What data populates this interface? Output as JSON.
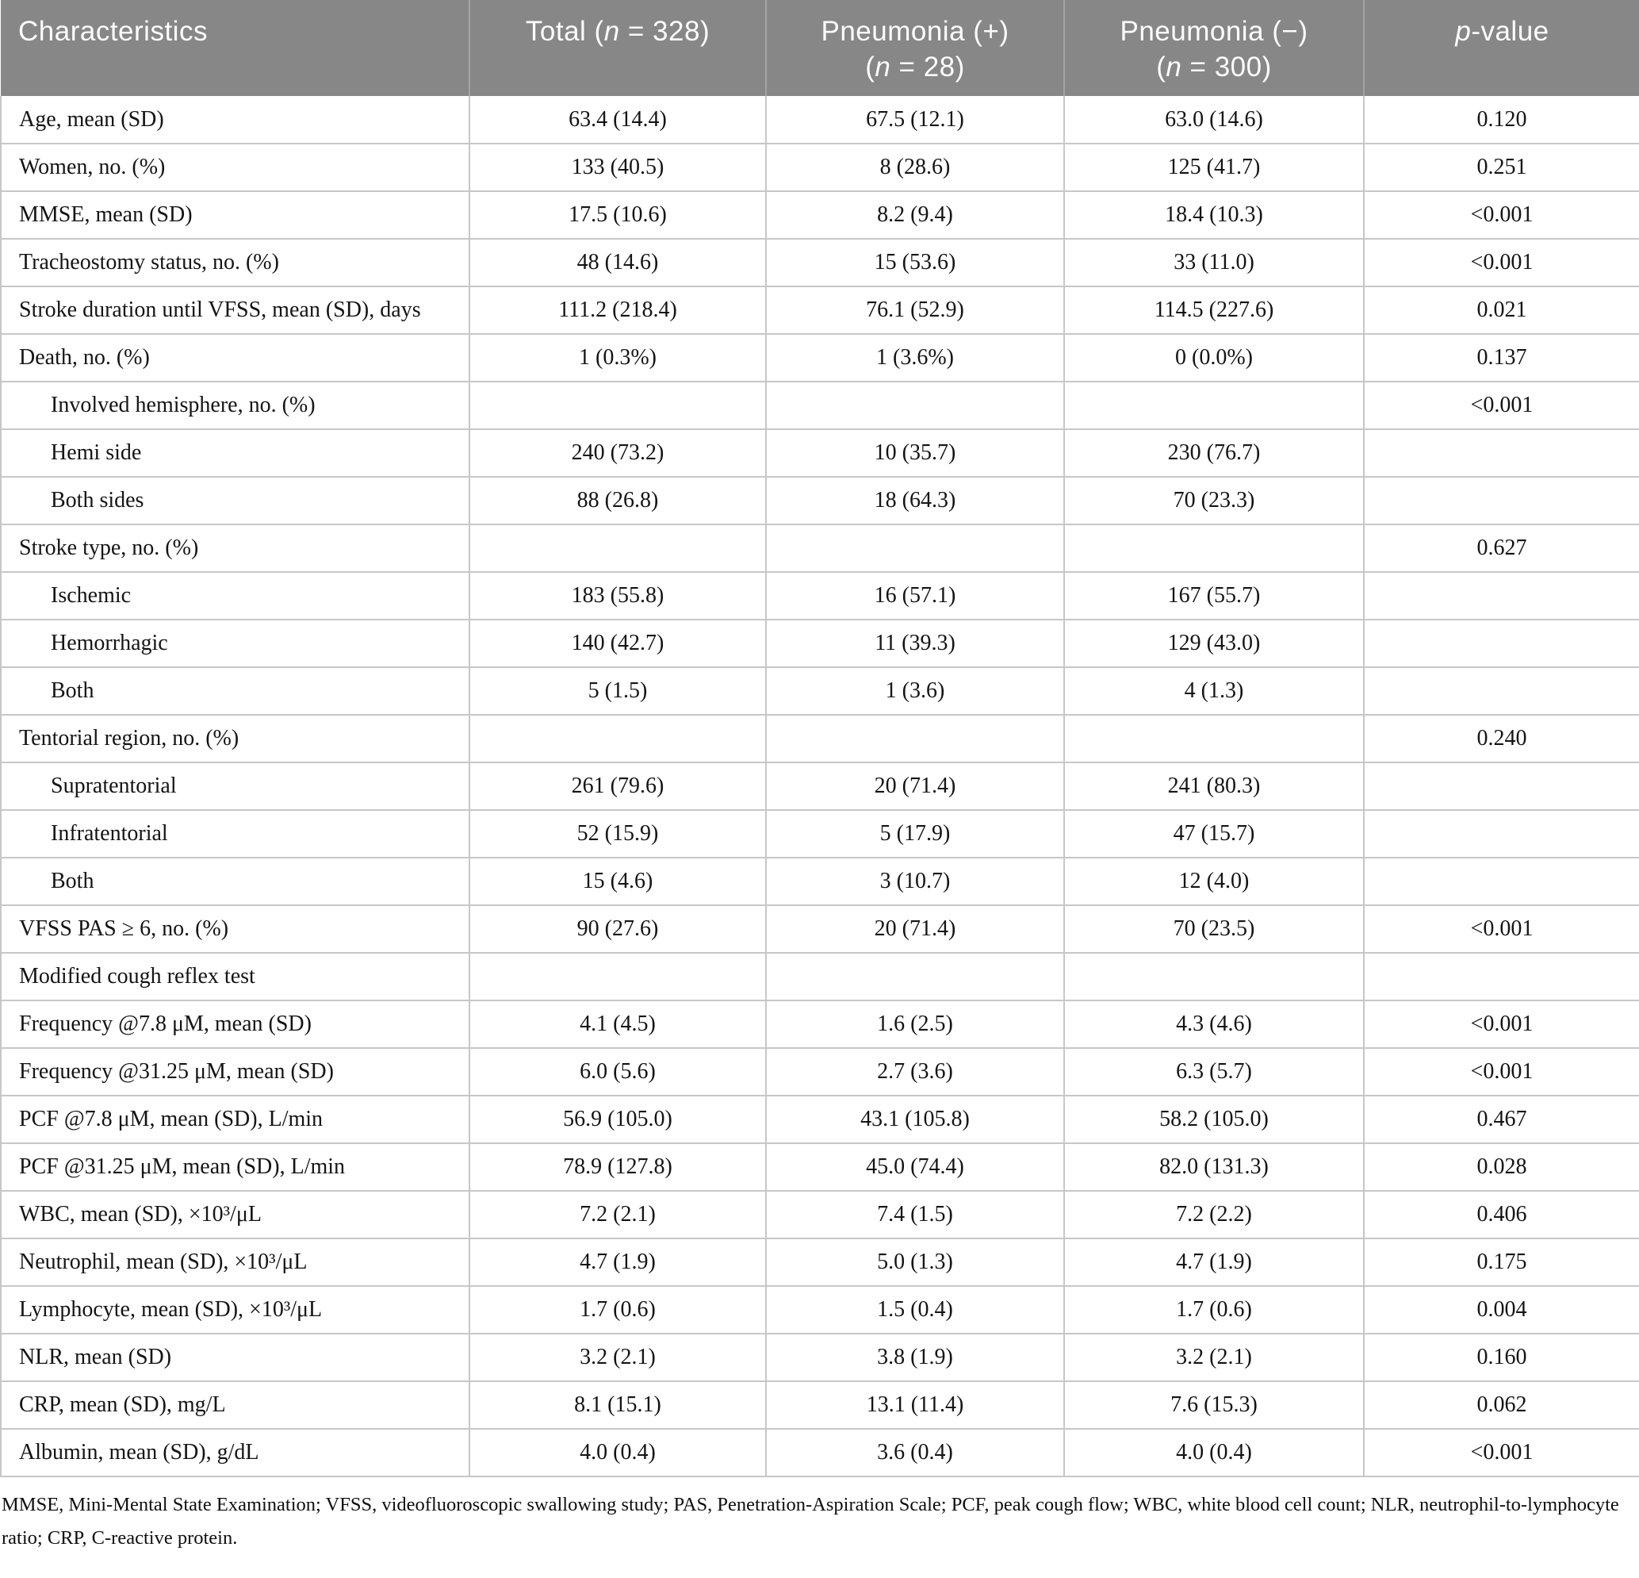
{
  "colors": {
    "header_bg": "#878787",
    "header_text": "#fcfcfc",
    "header_divider": "#a3a3a3",
    "border": "#c7c7c7",
    "text": "#141414"
  },
  "table": {
    "header": [
      {
        "lines": [
          "Characteristics"
        ]
      },
      {
        "lines": [
          "Total (n = 328)"
        ]
      },
      {
        "lines": [
          "Pneumonia (+)",
          "(n = 28)"
        ]
      },
      {
        "lines": [
          "Pneumonia (−)",
          "(n = 300)"
        ]
      },
      {
        "lines": [
          "p-value"
        ]
      }
    ],
    "rows": [
      {
        "label": "Age, mean (SD)",
        "indent": false,
        "values": [
          "63.4 (14.4)",
          "67.5 (12.1)",
          "63.0 (14.6)"
        ],
        "p": "0.120"
      },
      {
        "label": "Women, no. (%)",
        "indent": false,
        "values": [
          "133 (40.5)",
          "8 (28.6)",
          "125 (41.7)"
        ],
        "p": "0.251"
      },
      {
        "label": "MMSE, mean (SD)",
        "indent": false,
        "values": [
          "17.5 (10.6)",
          "8.2 (9.4)",
          "18.4 (10.3)"
        ],
        "p": "<0.001"
      },
      {
        "label": "Tracheostomy status, no. (%)",
        "indent": false,
        "values": [
          "48 (14.6)",
          "15 (53.6)",
          "33 (11.0)"
        ],
        "p": "<0.001"
      },
      {
        "label": "Stroke duration until VFSS, mean (SD), days",
        "indent": false,
        "values": [
          "111.2 (218.4)",
          "76.1 (52.9)",
          "114.5 (227.6)"
        ],
        "p": "0.021"
      },
      {
        "label": "Death, no. (%)",
        "indent": false,
        "values": [
          "1 (0.3%)",
          "1 (3.6%)",
          "0 (0.0%)"
        ],
        "p": "0.137"
      },
      {
        "label": "Involved hemisphere, no. (%)",
        "indent": true,
        "values": [
          "",
          "",
          ""
        ],
        "p": "<0.001"
      },
      {
        "label": "Hemi side",
        "indent": true,
        "values": [
          "240 (73.2)",
          "10 (35.7)",
          "230 (76.7)"
        ],
        "p": ""
      },
      {
        "label": "Both sides",
        "indent": true,
        "values": [
          "88 (26.8)",
          "18 (64.3)",
          "70 (23.3)"
        ],
        "p": ""
      },
      {
        "label": "Stroke type, no. (%)",
        "indent": false,
        "values": [
          "",
          "",
          ""
        ],
        "p": "0.627"
      },
      {
        "label": "Ischemic",
        "indent": true,
        "values": [
          "183 (55.8)",
          "16 (57.1)",
          "167 (55.7)"
        ],
        "p": ""
      },
      {
        "label": "Hemorrhagic",
        "indent": true,
        "values": [
          "140 (42.7)",
          "11 (39.3)",
          "129 (43.0)"
        ],
        "p": ""
      },
      {
        "label": "Both",
        "indent": true,
        "values": [
          "5 (1.5)",
          "1 (3.6)",
          "4 (1.3)"
        ],
        "p": ""
      },
      {
        "label": "Tentorial region, no. (%)",
        "indent": false,
        "values": [
          "",
          "",
          ""
        ],
        "p": "0.240"
      },
      {
        "label": "Supratentorial",
        "indent": true,
        "values": [
          "261 (79.6)",
          "20 (71.4)",
          "241 (80.3)"
        ],
        "p": ""
      },
      {
        "label": "Infratentorial",
        "indent": true,
        "values": [
          "52 (15.9)",
          "5 (17.9)",
          "47 (15.7)"
        ],
        "p": ""
      },
      {
        "label": "Both",
        "indent": true,
        "values": [
          "15 (4.6)",
          "3 (10.7)",
          "12 (4.0)"
        ],
        "p": ""
      },
      {
        "label": "VFSS PAS ≥ 6, no. (%)",
        "indent": false,
        "values": [
          "90 (27.6)",
          "20 (71.4)",
          "70 (23.5)"
        ],
        "p": "<0.001"
      },
      {
        "label": "Modified cough reflex test",
        "indent": false,
        "values": [
          "",
          "",
          ""
        ],
        "p": ""
      },
      {
        "label": "Frequency @7.8 μM, mean (SD)",
        "indent": false,
        "values": [
          "4.1 (4.5)",
          "1.6 (2.5)",
          "4.3 (4.6)"
        ],
        "p": "<0.001"
      },
      {
        "label": "Frequency @31.25 μM, mean (SD)",
        "indent": false,
        "values": [
          "6.0 (5.6)",
          "2.7 (3.6)",
          "6.3 (5.7)"
        ],
        "p": "<0.001"
      },
      {
        "label": "PCF @7.8 μM, mean (SD), L/min",
        "indent": false,
        "values": [
          "56.9 (105.0)",
          "43.1 (105.8)",
          "58.2 (105.0)"
        ],
        "p": "0.467"
      },
      {
        "label": "PCF @31.25 μM, mean (SD), L/min",
        "indent": false,
        "values": [
          "78.9 (127.8)",
          "45.0 (74.4)",
          "82.0 (131.3)"
        ],
        "p": "0.028"
      },
      {
        "label": "WBC, mean (SD), ×10³/μL",
        "indent": false,
        "values": [
          "7.2 (2.1)",
          "7.4 (1.5)",
          "7.2 (2.2)"
        ],
        "p": "0.406"
      },
      {
        "label": "Neutrophil, mean (SD), ×10³/μL",
        "indent": false,
        "values": [
          "4.7 (1.9)",
          "5.0 (1.3)",
          "4.7 (1.9)"
        ],
        "p": "0.175"
      },
      {
        "label": "Lymphocyte, mean (SD), ×10³/μL",
        "indent": false,
        "values": [
          "1.7 (0.6)",
          "1.5 (0.4)",
          "1.7 (0.6)"
        ],
        "p": "0.004"
      },
      {
        "label": "NLR, mean (SD)",
        "indent": false,
        "values": [
          "3.2 (2.1)",
          "3.8 (1.9)",
          "3.2 (2.1)"
        ],
        "p": "0.160"
      },
      {
        "label": "CRP, mean (SD), mg/L",
        "indent": false,
        "values": [
          "8.1 (15.1)",
          "13.1 (11.4)",
          "7.6 (15.3)"
        ],
        "p": "0.062"
      },
      {
        "label": "Albumin, mean (SD), g/dL",
        "indent": false,
        "values": [
          "4.0 (0.4)",
          "3.6 (0.4)",
          "4.0 (0.4)"
        ],
        "p": "<0.001"
      }
    ]
  },
  "footnote": "MMSE, Mini-Mental State Examination; VFSS, videofluoroscopic swallowing study; PAS, Penetration-Aspiration Scale; PCF, peak cough flow; WBC, white blood cell count; NLR, neutrophil-to-lymphocyte ratio; CRP, C-reactive protein."
}
